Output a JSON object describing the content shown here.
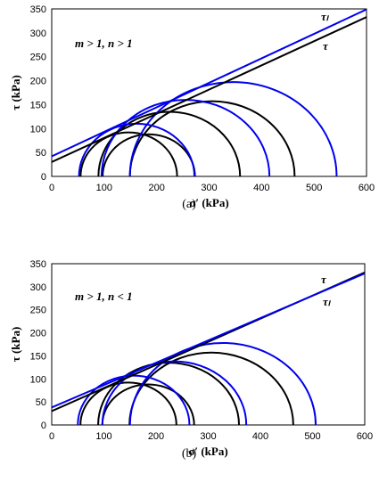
{
  "chart_data": [
    {
      "type": "line",
      "caption": "(a)",
      "xlabel": "σ′ (kPa)",
      "ylabel": "τ (kPa)",
      "xlim": [
        0,
        600
      ],
      "ylim": [
        0,
        350
      ],
      "xticks": [
        "0",
        "100",
        "200",
        "300",
        "400",
        "500",
        "600"
      ],
      "yticks": [
        "0",
        "50",
        "100",
        "150",
        "200",
        "250",
        "300",
        "350"
      ],
      "annotation": "m > 1, n > 1",
      "lines": [
        {
          "name": "τₗ",
          "color": "#0000ee",
          "points": [
            [
              0,
              42
            ],
            [
              600,
              349
            ]
          ]
        },
        {
          "name": "τ",
          "color": "#000000",
          "points": [
            [
              0,
              30
            ],
            [
              600,
              333
            ]
          ]
        }
      ],
      "circles": [
        {
          "color": "#000000",
          "center": 147,
          "radius": 92
        },
        {
          "color": "#000000",
          "center": 185,
          "radius": 88
        },
        {
          "color": "#000000",
          "center": 224,
          "radius": 135
        },
        {
          "color": "#000000",
          "center": 306,
          "radius": 157
        },
        {
          "color": "#0000ee",
          "center": 162,
          "radius": 110
        },
        {
          "color": "#0000ee",
          "center": 255,
          "radius": 160
        },
        {
          "color": "#0000ee",
          "center": 346,
          "radius": 197
        }
      ]
    },
    {
      "type": "line",
      "caption": "(b)",
      "xlabel": "σ′ (kPa)",
      "ylabel": "τ (kPa)",
      "xlim": [
        0,
        600
      ],
      "ylim": [
        0,
        350
      ],
      "xticks": [
        "0",
        "100",
        "200",
        "300",
        "400",
        "500",
        "600"
      ],
      "yticks": [
        "0",
        "50",
        "100",
        "150",
        "200",
        "250",
        "300",
        "350"
      ],
      "annotation": "m > 1, n < 1",
      "lines": [
        {
          "name": "τ",
          "color": "#000000",
          "points": [
            [
              0,
              30
            ],
            [
              600,
              331
            ]
          ]
        },
        {
          "name": "τₗ",
          "color": "#0000ee",
          "points": [
            [
              0,
              38
            ],
            [
              600,
              329
            ]
          ]
        }
      ],
      "circles": [
        {
          "color": "#000000",
          "center": 147,
          "radius": 92
        },
        {
          "color": "#000000",
          "center": 185,
          "radius": 88
        },
        {
          "color": "#000000",
          "center": 224,
          "radius": 135
        },
        {
          "color": "#000000",
          "center": 306,
          "radius": 157
        },
        {
          "color": "#0000ee",
          "center": 157,
          "radius": 107
        },
        {
          "color": "#0000ee",
          "center": 235,
          "radius": 138
        },
        {
          "color": "#0000ee",
          "center": 328,
          "radius": 178
        }
      ]
    }
  ]
}
